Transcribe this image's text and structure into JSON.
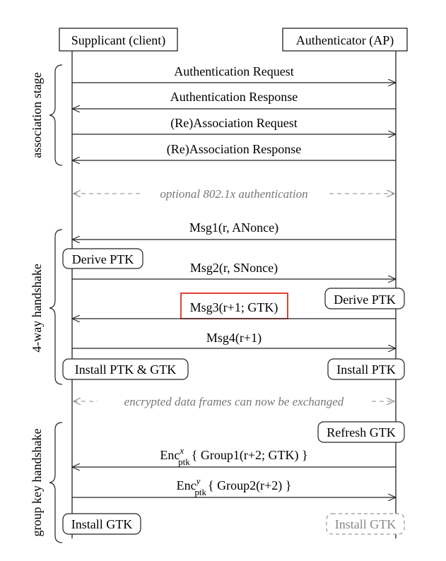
{
  "parties": {
    "left": "Supplicant (client)",
    "right": "Authenticator (AP)"
  },
  "stages": {
    "association": "association stage",
    "four_way": "4-way handshake",
    "group": "group key handshake"
  },
  "messages": {
    "auth_request": "Authentication Request",
    "auth_response": "Authentication Response",
    "assoc_request": "(Re)Association Request",
    "assoc_response": "(Re)Association Response",
    "optional_auth": "optional 802.1x authentication",
    "msg1": "Msg1(r, ANonce)",
    "msg2": "Msg2(r, SNonce)",
    "msg3": "Msg3(r+1; GTK)",
    "msg4": "Msg4(r+1)",
    "encrypted_data": "encrypted data frames can now be exchanged",
    "group1_prefix": "Enc",
    "group1_sup": "x",
    "group1_sub": "ptk",
    "group1_body": "{ Group1(r+2; GTK) }",
    "group2_prefix": "Enc",
    "group2_sup": "y",
    "group2_sub": "ptk",
    "group2_body": "{ Group2(r+2) }"
  },
  "actions": {
    "derive_ptk_client": "Derive PTK",
    "derive_ptk_ap": "Derive PTK",
    "install_ptk_gtk": "Install PTK & GTK",
    "install_ptk": "Install PTK",
    "refresh_gtk": "Refresh GTK",
    "install_gtk_client": "Install GTK",
    "install_gtk_ap": "Install GTK"
  },
  "colors": {
    "line": "#222222",
    "dashed_text": "#777777",
    "highlight": "#d9301f"
  }
}
